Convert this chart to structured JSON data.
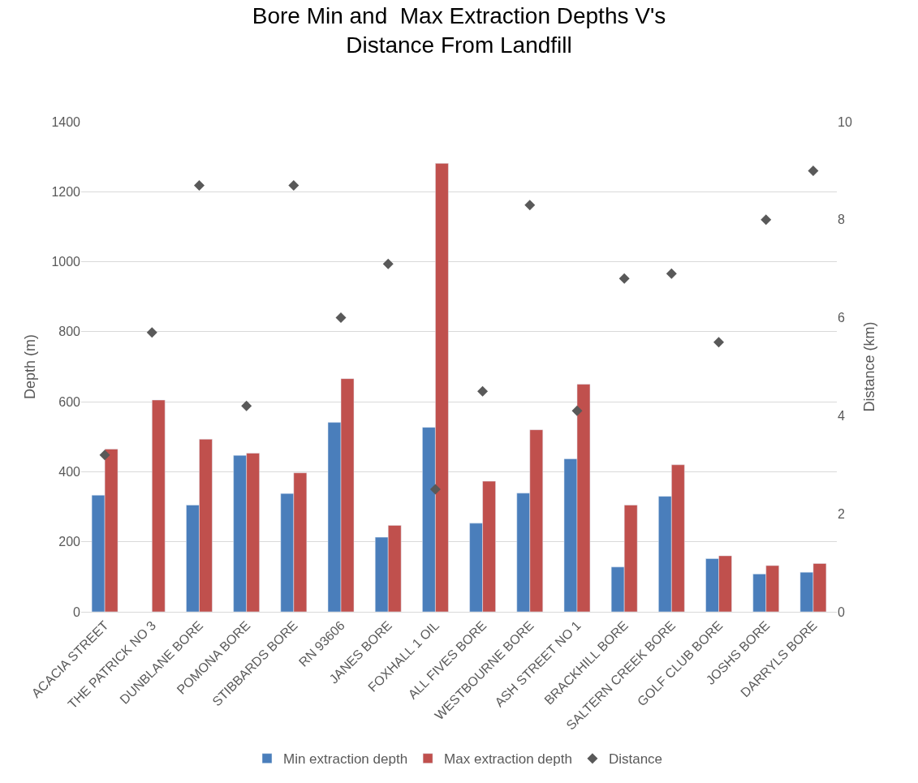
{
  "chart_data": {
    "type": "bar",
    "title": "Bore Min and  Max Extraction Depths V's\nDistance From Landfill",
    "ylabel": "Depth (m)",
    "y2label": "Distance (km)",
    "categories": [
      "ACACIA STREET",
      "THE PATRICK NO 3",
      "DUNBLANE BORE",
      "POMONA BORE",
      "STIBBARDS BORE",
      "RN 93606",
      "JANES BORE",
      "FOXHALL 1 OIL",
      "ALL FIVES BORE",
      "WESTBOURNE BORE",
      "ASH STREET NO 1",
      "BRACKHILL BORE",
      "SALTERN CREEK BORE",
      "GOLF CLUB BORE",
      "JOSHS BORE",
      "DARRYLS BORE"
    ],
    "series": [
      {
        "name": "Min extraction depth",
        "color": "#4a7ebb",
        "values": [
          333,
          null,
          305,
          447,
          338,
          541,
          213,
          527,
          253,
          339,
          437,
          128,
          330,
          152,
          108,
          113
        ]
      },
      {
        "name": "Max extraction depth",
        "color": "#c0504d",
        "values": [
          465,
          605,
          493,
          453,
          397,
          666,
          247,
          1281,
          373,
          520,
          650,
          305,
          420,
          160,
          132,
          138
        ]
      },
      {
        "name": "Distance",
        "type": "scatter",
        "axis": "y2",
        "marker": "diamond",
        "color": "#595959",
        "values": [
          3.2,
          5.7,
          8.7,
          4.2,
          8.7,
          6.0,
          7.1,
          2.5,
          4.5,
          8.3,
          4.1,
          6.8,
          6.9,
          5.5,
          8.0,
          9.0
        ]
      }
    ],
    "ylim": [
      0,
      1400
    ],
    "yticks": [
      0,
      200,
      400,
      600,
      800,
      1000,
      1200,
      1400
    ],
    "y2lim": [
      0,
      10
    ],
    "y2ticks": [
      0,
      2,
      4,
      6,
      8,
      10
    ],
    "grid": "y",
    "legend": "bottom"
  }
}
